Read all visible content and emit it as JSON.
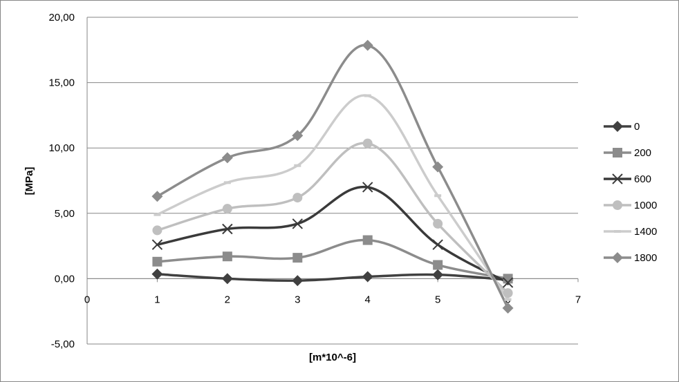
{
  "chart_data": {
    "type": "line",
    "smooth": true,
    "xlabel": "[m*10^-6]",
    "ylabel": "[MPa]",
    "xlim": [
      0,
      7
    ],
    "ylim": [
      -5,
      20
    ],
    "x_ticks": [
      "0",
      "1",
      "2",
      "3",
      "4",
      "5",
      "6",
      "7"
    ],
    "y_ticks": [
      "-5,00",
      "0,00",
      "5,00",
      "10,00",
      "15,00",
      "20,00"
    ],
    "y_tick_values": [
      -5,
      0,
      5,
      10,
      15,
      20
    ],
    "x_tick_values": [
      0,
      1,
      2,
      3,
      4,
      5,
      6,
      7
    ],
    "grid": "horizontal",
    "legend_position": "right",
    "x": [
      1,
      2,
      3,
      4,
      5,
      6
    ],
    "series": [
      {
        "name": "0",
        "values": [
          0.35,
          0.0,
          -0.15,
          0.15,
          0.3,
          -0.1
        ],
        "color": "#404040",
        "marker": "diamond"
      },
      {
        "name": "200",
        "values": [
          1.3,
          1.7,
          1.6,
          2.95,
          1.05,
          0.0
        ],
        "color": "#8c8c8c",
        "marker": "square"
      },
      {
        "name": "600",
        "values": [
          2.6,
          3.8,
          4.2,
          7.0,
          2.6,
          -0.3
        ],
        "color": "#3a3a3a",
        "marker": "x"
      },
      {
        "name": "1000",
        "values": [
          3.7,
          5.35,
          6.2,
          10.35,
          4.2,
          -1.1
        ],
        "color": "#bfbfbf",
        "marker": "circle"
      },
      {
        "name": "1400",
        "values": [
          4.9,
          7.35,
          8.65,
          14.0,
          6.35,
          -1.6
        ],
        "color": "#cccccc",
        "marker": "dash"
      },
      {
        "name": "1800",
        "values": [
          6.3,
          9.25,
          10.95,
          17.85,
          8.55,
          -2.25
        ],
        "color": "#8c8c8c",
        "marker": "diamond"
      }
    ]
  }
}
